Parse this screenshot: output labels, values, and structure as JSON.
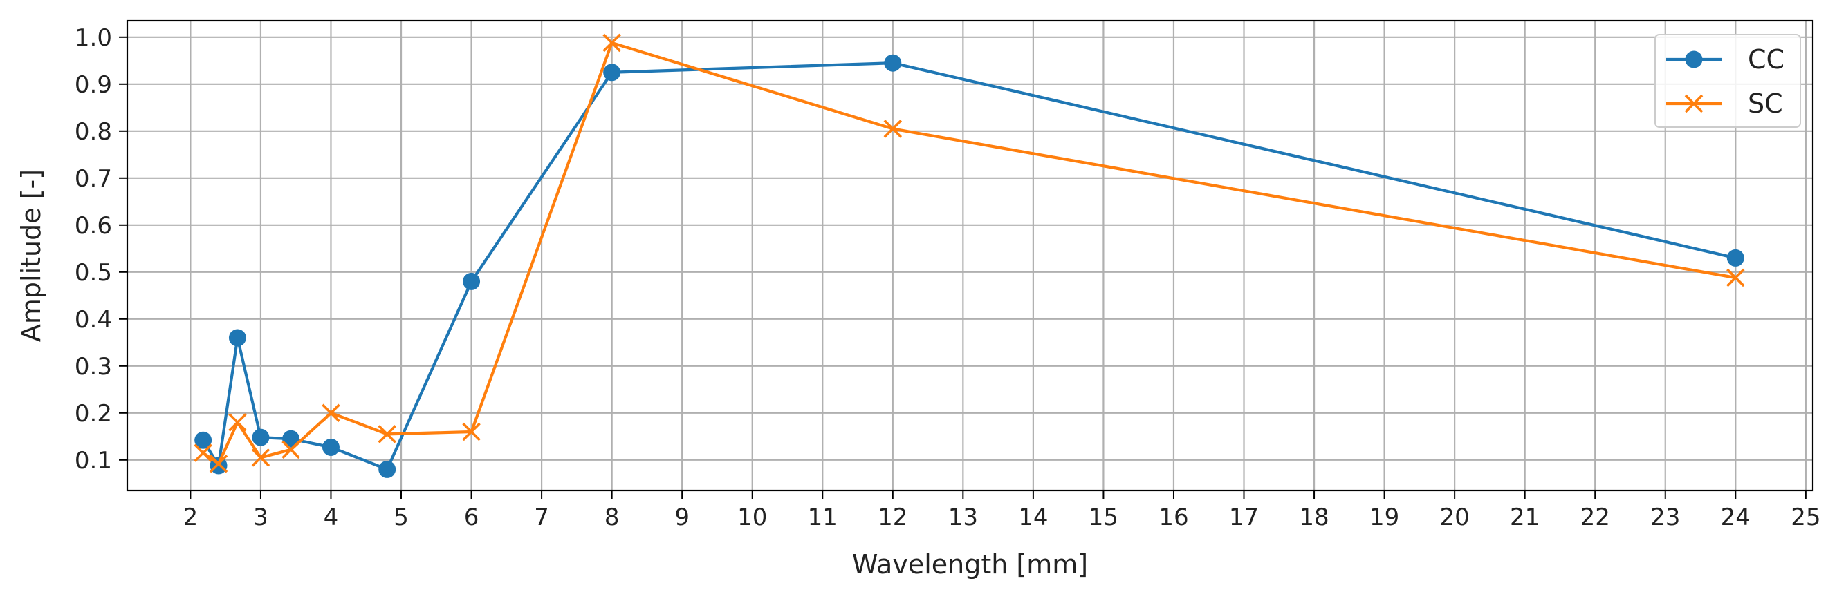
{
  "chart_data": {
    "type": "line",
    "title": "",
    "xlabel": "Wavelength [mm]",
    "ylabel": "Amplitude [-]",
    "xlim": [
      1.1,
      25.1
    ],
    "ylim": [
      0.035,
      1.035
    ],
    "xticks": [
      2,
      3,
      4,
      5,
      6,
      7,
      8,
      9,
      10,
      11,
      12,
      13,
      14,
      15,
      16,
      17,
      18,
      19,
      20,
      21,
      22,
      23,
      24,
      25
    ],
    "yticks": [
      0.1,
      0.2,
      0.3,
      0.4,
      0.5,
      0.6,
      0.7,
      0.8,
      0.9,
      1.0
    ],
    "ytick_labels": [
      "0.1",
      "0.2",
      "0.3",
      "0.4",
      "0.5",
      "0.6",
      "0.7",
      "0.8",
      "0.9",
      "1.0"
    ],
    "grid": true,
    "legend_position": "top-right",
    "series": [
      {
        "name": "CC",
        "color": "#1f77b4",
        "marker": "circle",
        "x": [
          2.18,
          2.4,
          2.67,
          3.0,
          3.43,
          4.0,
          4.8,
          6.0,
          8.0,
          12.0,
          24.0
        ],
        "y": [
          0.142,
          0.088,
          0.36,
          0.148,
          0.145,
          0.127,
          0.08,
          0.48,
          0.925,
          0.945,
          0.53
        ]
      },
      {
        "name": "SC",
        "color": "#ff7f0e",
        "marker": "x",
        "x": [
          2.18,
          2.4,
          2.67,
          3.0,
          3.43,
          4.0,
          4.8,
          6.0,
          8.0,
          12.0,
          24.0
        ],
        "y": [
          0.115,
          0.092,
          0.18,
          0.105,
          0.122,
          0.2,
          0.155,
          0.16,
          0.988,
          0.805,
          0.488
        ]
      }
    ]
  }
}
